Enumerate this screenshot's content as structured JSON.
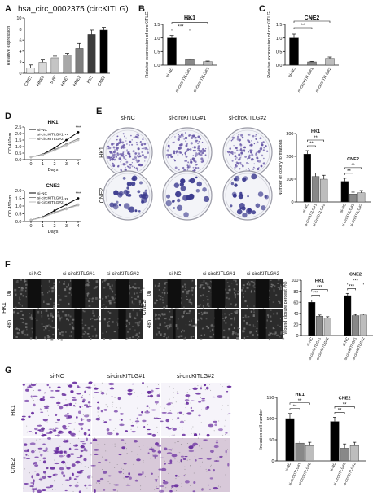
{
  "panels": {
    "A": {
      "letter": "A",
      "title": "hsa_circ_0002375 (circKITLG)",
      "chart_data": {
        "type": "bar",
        "ylabel": "Relative expression",
        "categories": [
          "CNE1",
          "HNE3",
          "5-8F",
          "HNE1",
          "HNE2",
          "HK1",
          "CNE2"
        ],
        "values": [
          1.0,
          2.0,
          2.8,
          3.3,
          4.5,
          7.0,
          7.8
        ],
        "errors": [
          0.5,
          0.4,
          0.3,
          0.3,
          0.9,
          0.8,
          0.5
        ],
        "colors": [
          "#eeeeee",
          "#d8d8d8",
          "#c4c4c4",
          "#a8a8a8",
          "#7e7e7e",
          "#3c3c3c",
          "#000000"
        ],
        "ylim": [
          0,
          10
        ],
        "yticks": [
          "0",
          "2",
          "4",
          "6",
          "8",
          "10"
        ]
      }
    },
    "B": {
      "letter": "B",
      "chart_data": {
        "type": "bar",
        "title": "HK1",
        "ylabel": "Relative expression of circKITLG",
        "categories": [
          "si-NC",
          "si-circKITLG#1",
          "si-circKITLG#2"
        ],
        "values": [
          1.0,
          0.2,
          0.13
        ],
        "errors": [
          0.09,
          0.03,
          0.02
        ],
        "colors": [
          "#000000",
          "#888888",
          "#bdbdbd"
        ],
        "ylim": [
          0,
          1.5
        ],
        "yticks": [
          "0.0",
          "0.5",
          "1.0",
          "1.5"
        ],
        "sig": [
          "***",
          "***"
        ]
      }
    },
    "C": {
      "letter": "C",
      "chart_data": {
        "type": "bar",
        "title": "CNE2",
        "ylabel": "Relative expression of circKITLG",
        "categories": [
          "si-NC",
          "si-circKITLG#1",
          "si-circKITLG#2"
        ],
        "values": [
          1.0,
          0.12,
          0.25
        ],
        "errors": [
          0.14,
          0.02,
          0.05
        ],
        "colors": [
          "#000000",
          "#888888",
          "#bdbdbd"
        ],
        "ylim": [
          0,
          1.5
        ],
        "yticks": [
          "0.0",
          "0.5",
          "1.0",
          "1.5"
        ],
        "sig": [
          "**",
          "***"
        ]
      }
    },
    "D": {
      "letter": "D",
      "charts": [
        {
          "type": "line",
          "title": "HK1",
          "ylabel": "OD 450nm",
          "xlabel": "Days",
          "x": [
            0,
            1,
            2,
            3,
            4
          ],
          "ylim": [
            0,
            2.5
          ],
          "yticks": [
            "0.0",
            "0.5",
            "1.0",
            "1.5",
            "2.0",
            "2.5"
          ],
          "series": [
            {
              "name": "si-NC",
              "values": [
                0.2,
                0.4,
                0.9,
                1.5,
                2.1
              ],
              "color": "#000000"
            },
            {
              "name": "si-circKITLG#1",
              "values": [
                0.2,
                0.38,
                0.75,
                1.2,
                1.6
              ],
              "color": "#888888"
            },
            {
              "name": "si-circKITLG#2",
              "values": [
                0.2,
                0.36,
                0.7,
                1.1,
                1.5
              ],
              "color": "#bdbdbd"
            }
          ],
          "sig": [
            "**",
            "***"
          ]
        },
        {
          "type": "line",
          "title": "CNE2",
          "ylabel": "OD 450nm",
          "xlabel": "Days",
          "x": [
            0,
            1,
            2,
            3,
            4
          ],
          "ylim": [
            0,
            2.0
          ],
          "yticks": [
            "0.0",
            "0.5",
            "1.0",
            "1.5",
            "2.0"
          ],
          "series": [
            {
              "name": "si-NC",
              "values": [
                0.1,
                0.3,
                0.7,
                1.1,
                1.5
              ],
              "color": "#000000"
            },
            {
              "name": "si-circKITLG#1",
              "values": [
                0.1,
                0.28,
                0.58,
                0.85,
                1.1
              ],
              "color": "#888888"
            },
            {
              "name": "si-circKITLG#2",
              "values": [
                0.1,
                0.27,
                0.55,
                0.8,
                1.05
              ],
              "color": "#bdbdbd"
            }
          ],
          "sig": [
            "**",
            "***"
          ]
        }
      ]
    },
    "E": {
      "letter": "E",
      "cols": [
        "si-NC",
        "si-circKITLG#1",
        "si-circKITLG#2"
      ],
      "rows": [
        "HK1",
        "CNE2"
      ],
      "dish_density": [
        [
          0.9,
          0.75,
          0.7
        ],
        [
          0.5,
          0.35,
          0.4
        ]
      ],
      "chart_data": {
        "type": "bar",
        "ylabel": "Number of colony formations",
        "groups": [
          {
            "name": "HK1",
            "values": [
              210,
              112,
              100
            ],
            "errors": [
              15,
              15,
              17
            ],
            "sig": [
              "**",
              "**"
            ]
          },
          {
            "name": "CNE2",
            "values": [
              90,
              35,
              40
            ],
            "errors": [
              14,
              8,
              10
            ],
            "sig": [
              "**",
              "**"
            ]
          }
        ],
        "categories": [
          "si-NC",
          "si-circKITLG#1",
          "si-circKITLG#2"
        ],
        "colors": [
          "#000000",
          "#888888",
          "#bdbdbd"
        ],
        "ylim": [
          0,
          300
        ],
        "yticks": [
          "0",
          "100",
          "200",
          "300"
        ]
      }
    },
    "F": {
      "letter": "F",
      "cols": [
        "si-NC",
        "si-circKITLG#1",
        "si-circKITLG#2"
      ],
      "groups": [
        "HK1",
        "CNE2"
      ],
      "times": [
        "0h",
        "48h"
      ],
      "chart_data": {
        "type": "bar",
        "ylabel": "Wound closure percent (%)",
        "groups": [
          {
            "name": "HK1",
            "values": [
              60,
              35,
              32
            ],
            "errors": [
              4,
              2,
              2
            ],
            "sig": [
              "***",
              "***"
            ]
          },
          {
            "name": "CNE2",
            "values": [
              72,
              36,
              37
            ],
            "errors": [
              4,
              2,
              2
            ],
            "sig": [
              "***",
              "***"
            ]
          }
        ],
        "categories": [
          "si-NC",
          "si-circKITLG#1",
          "si-circKITLG#2"
        ],
        "colors": [
          "#000000",
          "#888888",
          "#bdbdbd"
        ],
        "ylim": [
          0,
          100
        ],
        "yticks": [
          "0",
          "20",
          "40",
          "60",
          "80",
          "100"
        ]
      }
    },
    "G": {
      "letter": "G",
      "cols": [
        "si-NC",
        "si-circKITLG#1",
        "si-circKITLG#2"
      ],
      "rows": [
        "HK1",
        "CNE2"
      ],
      "stain_density": [
        [
          0.9,
          0.45,
          0.4
        ],
        [
          0.85,
          0.35,
          0.4
        ]
      ],
      "chart_data": {
        "type": "bar",
        "ylabel": "Invasion cell number",
        "groups": [
          {
            "name": "HK1",
            "values": [
              100,
              42,
              36
            ],
            "errors": [
              12,
              5,
              8
            ],
            "sig": [
              "**",
              "**"
            ]
          },
          {
            "name": "CNE2",
            "values": [
              93,
              30,
              36
            ],
            "errors": [
              10,
              10,
              8
            ],
            "sig": [
              "**",
              "**"
            ]
          }
        ],
        "categories": [
          "si-NC",
          "si-circKITLG#1",
          "si-circKITLG#2"
        ],
        "colors": [
          "#000000",
          "#888888",
          "#bdbdbd"
        ],
        "ylim": [
          0,
          150
        ],
        "yticks": [
          "0",
          "50",
          "100",
          "150"
        ]
      }
    }
  }
}
